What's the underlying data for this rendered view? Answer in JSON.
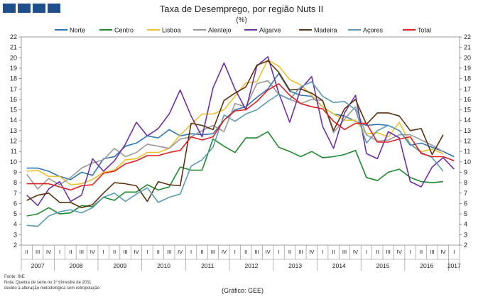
{
  "header": {
    "title": "Taxa de Desemprego, por região Nuts II",
    "unit": "(%)"
  },
  "footer": {
    "source": "Fonte: INE",
    "note1": "Nota: Quebra de série no 1º trimestre de 2011",
    "note2": "devido à alteração metodológica sem retropolação",
    "credit": "(Gráfico: GEE)"
  },
  "chart_data": {
    "type": "line",
    "title": "Taxa de Desemprego, por região Nuts II",
    "ylabel": "(%)",
    "ylim": [
      2,
      22
    ],
    "yticks": [
      2,
      3,
      4,
      5,
      6,
      7,
      8,
      9,
      10,
      11,
      12,
      13,
      14,
      15,
      16,
      17,
      18,
      19,
      20,
      21,
      22
    ],
    "quarters": [
      "II",
      "III",
      "IV",
      "I",
      "II",
      "III",
      "IV",
      "I",
      "II",
      "III",
      "IV",
      "I",
      "II",
      "III",
      "IV",
      "I",
      "II",
      "III",
      "IV",
      "I",
      "II",
      "III",
      "IV",
      "I",
      "II",
      "III",
      "IV",
      "I",
      "II",
      "III",
      "IV",
      "I",
      "II",
      "III",
      "IV",
      "I",
      "II",
      "III",
      "IV",
      "I"
    ],
    "years": [
      {
        "label": "2007",
        "start": 0,
        "count": 3
      },
      {
        "label": "2008",
        "start": 3,
        "count": 4
      },
      {
        "label": "2009",
        "start": 7,
        "count": 4
      },
      {
        "label": "2010",
        "start": 11,
        "count": 4
      },
      {
        "label": "2011",
        "start": 15,
        "count": 4
      },
      {
        "label": "2012",
        "start": 19,
        "count": 4
      },
      {
        "label": "2013",
        "start": 23,
        "count": 4
      },
      {
        "label": "2014",
        "start": 27,
        "count": 4
      },
      {
        "label": "2015",
        "start": 31,
        "count": 4
      },
      {
        "label": "2016",
        "start": 35,
        "count": 4
      },
      {
        "label": "2017",
        "start": 39,
        "count": 1
      }
    ],
    "series": [
      {
        "name": "Norte",
        "color": "#2e75b6",
        "values": [
          9.4,
          9.4,
          9.1,
          8.6,
          8.3,
          9.0,
          8.7,
          10.3,
          10.5,
          11.5,
          11.8,
          12.5,
          12.3,
          13.1,
          12.5,
          12.7,
          12.6,
          12.7,
          14.0,
          15.0,
          15.3,
          16.2,
          17.0,
          18.5,
          16.8,
          16.4,
          16.3,
          15.3,
          14.6,
          14.4,
          13.9,
          13.5,
          13.6,
          13.5,
          13.0,
          11.6,
          11.8,
          11.4,
          11.0,
          10.5
        ]
      },
      {
        "name": "Centro",
        "color": "#1e8a2e",
        "values": [
          4.8,
          5.0,
          5.6,
          5.0,
          5.1,
          5.8,
          5.7,
          6.6,
          6.3,
          7.1,
          7.1,
          7.8,
          7.3,
          7.6,
          9.5,
          9.2,
          9.2,
          12.2,
          11.5,
          10.9,
          12.3,
          12.3,
          12.9,
          11.4,
          11.0,
          10.5,
          11.0,
          10.4,
          10.5,
          10.7,
          11.1,
          8.5,
          8.2,
          9.0,
          9.3,
          8.5,
          8.1,
          8.0,
          8.1,
          null
        ]
      },
      {
        "name": "Lisboa",
        "color": "#f0c030",
        "values": [
          9.1,
          9.2,
          8.6,
          8.6,
          7.8,
          7.9,
          8.3,
          9.0,
          9.2,
          10.2,
          10.3,
          10.9,
          10.9,
          11.3,
          12.6,
          13.6,
          14.6,
          14.6,
          15.0,
          16.3,
          17.6,
          17.7,
          19.8,
          19.2,
          17.9,
          17.4,
          16.4,
          15.3,
          14.6,
          14.0,
          14.0,
          12.7,
          12.8,
          12.4,
          13.8,
          11.7,
          11.0,
          11.2,
          10.8,
          null
        ]
      },
      {
        "name": "Alentejo",
        "color": "#999999",
        "values": [
          8.8,
          7.4,
          8.4,
          7.8,
          8.5,
          9.4,
          9.9,
          10.2,
          11.3,
          10.5,
          10.9,
          11.7,
          11.5,
          11.3,
          12.2,
          12.4,
          13.0,
          13.5,
          12.9,
          15.6,
          15.3,
          17.5,
          17.8,
          16.5,
          16.0,
          15.6,
          16.0,
          15.9,
          12.8,
          14.1,
          15.3,
          12.6,
          12.0,
          12.1,
          12.6,
          12.6,
          12.1,
          11.6,
          11.0,
          null
        ]
      },
      {
        "name": "Algarve",
        "color": "#7030a0",
        "values": [
          6.8,
          5.8,
          7.4,
          8.1,
          6.2,
          6.8,
          10.3,
          9.1,
          10.1,
          11.7,
          13.8,
          12.5,
          13.2,
          14.6,
          16.9,
          14.4,
          12.4,
          17.1,
          19.5,
          17.0,
          15.0,
          19.2,
          20.1,
          16.6,
          13.8,
          17.0,
          18.2,
          13.4,
          11.3,
          14.7,
          16.4,
          10.8,
          10.3,
          12.9,
          12.3,
          8.1,
          7.6,
          9.5,
          10.4,
          9.3
        ]
      },
      {
        "name": "Madeira",
        "color": "#5c3310",
        "values": [
          6.3,
          6.8,
          7.0,
          6.1,
          6.1,
          5.6,
          5.9,
          7.0,
          8.0,
          7.9,
          7.7,
          6.2,
          8.1,
          7.8,
          7.7,
          13.7,
          13.5,
          13.1,
          15.9,
          16.6,
          17.2,
          19.3,
          19.7,
          18.6,
          16.9,
          17.0,
          16.6,
          15.9,
          13.0,
          15.1,
          16.0,
          13.6,
          14.7,
          14.7,
          14.4,
          13.0,
          13.2,
          10.7,
          12.6,
          null
        ]
      },
      {
        "name": "Açores",
        "color": "#5b9bb5",
        "values": [
          3.9,
          3.8,
          4.8,
          5.2,
          5.4,
          5.1,
          5.6,
          6.6,
          7.0,
          6.2,
          6.9,
          7.5,
          6.1,
          6.6,
          6.9,
          9.6,
          10.2,
          11.4,
          14.5,
          13.9,
          14.6,
          15.0,
          15.8,
          16.5,
          16.0,
          17.2,
          17.7,
          16.3,
          15.7,
          15.8,
          15.0,
          11.8,
          13.0,
          13.5,
          13.0,
          11.7,
          10.9,
          10.4,
          9.1,
          null
        ]
      },
      {
        "name": "Total",
        "color": "#e02020",
        "values": [
          7.9,
          7.9,
          7.9,
          7.6,
          7.3,
          7.7,
          7.8,
          8.9,
          9.1,
          9.8,
          10.1,
          10.6,
          10.6,
          10.9,
          11.1,
          12.4,
          12.1,
          12.4,
          14.0,
          14.9,
          15.0,
          15.8,
          16.9,
          17.5,
          16.4,
          15.6,
          15.3,
          15.1,
          13.9,
          13.1,
          13.7,
          13.7,
          11.9,
          11.9,
          12.2,
          12.4,
          10.8,
          10.5,
          10.5,
          10.1
        ]
      }
    ]
  }
}
